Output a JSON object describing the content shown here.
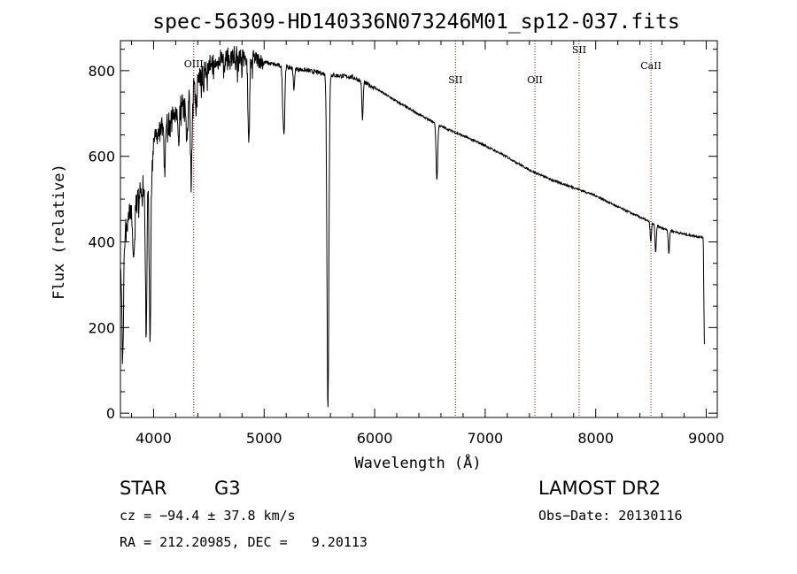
{
  "chart_data": {
    "type": "line",
    "title": "spec-56309-HD140336N073246M01_sp12-037.fits",
    "xlabel": "Wavelength (Å)",
    "ylabel": "Flux (relative)",
    "xlim": [
      3700,
      9100
    ],
    "ylim": [
      -10,
      870
    ],
    "x_ticks": [
      4000,
      5000,
      6000,
      7000,
      8000,
      9000
    ],
    "y_ticks": [
      0,
      200,
      400,
      600,
      800
    ],
    "grid": false,
    "continuum": [
      [
        3700,
        380
      ],
      [
        3780,
        480
      ],
      [
        3860,
        520
      ],
      [
        3950,
        560
      ],
      [
        4000,
        640
      ],
      [
        4100,
        690
      ],
      [
        4200,
        710
      ],
      [
        4300,
        740
      ],
      [
        4400,
        790
      ],
      [
        4500,
        820
      ],
      [
        4600,
        830
      ],
      [
        4700,
        840
      ],
      [
        4800,
        845
      ],
      [
        4900,
        830
      ],
      [
        5000,
        820
      ],
      [
        5200,
        808
      ],
      [
        5400,
        800
      ],
      [
        5600,
        790
      ],
      [
        5800,
        785
      ],
      [
        6000,
        760
      ],
      [
        6200,
        728
      ],
      [
        6400,
        698
      ],
      [
        6600,
        670
      ],
      [
        6800,
        648
      ],
      [
        7000,
        625
      ],
      [
        7200,
        598
      ],
      [
        7400,
        568
      ],
      [
        7600,
        545
      ],
      [
        7800,
        527
      ],
      [
        8000,
        508
      ],
      [
        8200,
        482
      ],
      [
        8400,
        458
      ],
      [
        8600,
        432
      ],
      [
        8800,
        418
      ],
      [
        8980,
        410
      ]
    ],
    "absorption_lines": [
      {
        "wavelength": 3720,
        "depth": 280,
        "width": 10
      },
      {
        "wavelength": 3820,
        "depth": 140,
        "width": 12
      },
      {
        "wavelength": 3933,
        "depth": 330,
        "width": 10
      },
      {
        "wavelength": 3968,
        "depth": 400,
        "width": 10
      },
      {
        "wavelength": 4101,
        "depth": 100,
        "width": 10
      },
      {
        "wavelength": 4226,
        "depth": 80,
        "width": 8
      },
      {
        "wavelength": 4300,
        "depth": 90,
        "width": 10
      },
      {
        "wavelength": 4340,
        "depth": 200,
        "width": 10
      },
      {
        "wavelength": 4383,
        "depth": 70,
        "width": 8
      },
      {
        "wavelength": 4861,
        "depth": 200,
        "width": 10
      },
      {
        "wavelength": 5172,
        "depth": 110,
        "width": 10
      },
      {
        "wavelength": 5183,
        "depth": 110,
        "width": 8
      },
      {
        "wavelength": 5270,
        "depth": 50,
        "width": 8
      },
      {
        "wavelength": 5577,
        "depth": 780,
        "width": 12
      },
      {
        "wavelength": 5890,
        "depth": 90,
        "width": 8
      },
      {
        "wavelength": 6563,
        "depth": 130,
        "width": 10
      },
      {
        "wavelength": 8498,
        "depth": 45,
        "width": 8
      },
      {
        "wavelength": 8542,
        "depth": 65,
        "width": 8
      },
      {
        "wavelength": 8662,
        "depth": 55,
        "width": 8
      }
    ],
    "spectral_line_markers": [
      {
        "label": "OIII",
        "wavelength": 4363
      },
      {
        "label": "SII",
        "wavelength": 6731
      },
      {
        "label": "OII",
        "wavelength": 7450
      },
      {
        "label": "SII",
        "wavelength": 7850
      },
      {
        "label": "CaII",
        "wavelength": 8500
      }
    ]
  },
  "info": {
    "object_class": "STAR",
    "subclass": "G3",
    "survey": "LAMOST DR2",
    "redshift": "cz = −94.4 ± 37.8 km/s",
    "obs_date": "Obs−Date: 20130116",
    "coords": "RA = 212.20985, DEC =   9.20113"
  },
  "colors": {
    "spectrum": "#000000",
    "marker_line": "#8b0000",
    "background": "#ffffff"
  }
}
